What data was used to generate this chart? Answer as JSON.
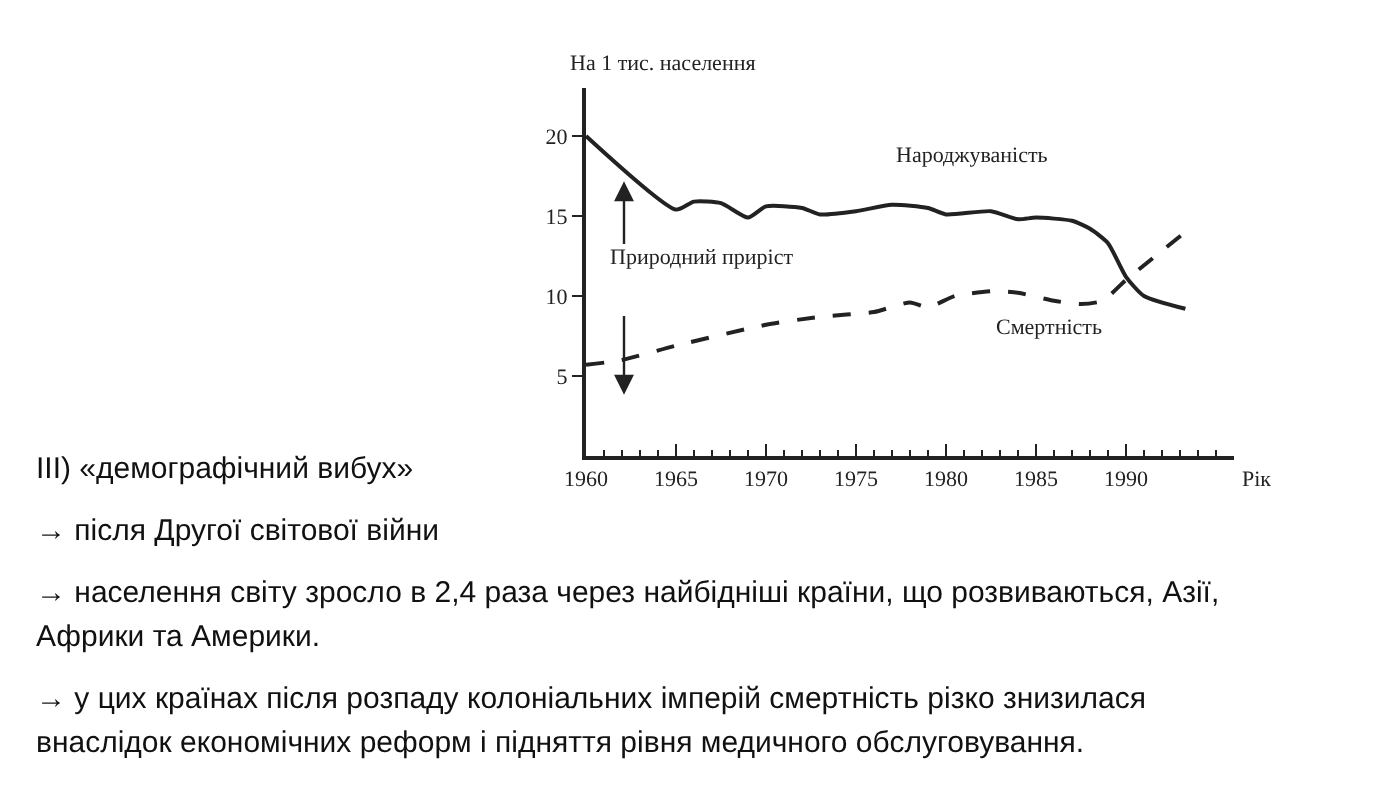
{
  "chart_data": {
    "type": "line",
    "xlabel": "Рік",
    "ylabel": "На 1 тис. населення",
    "xlim": [
      1960,
      1996
    ],
    "xticks": [
      1960,
      1965,
      1970,
      1975,
      1980,
      1985,
      1990
    ],
    "ylim": [
      0,
      23
    ],
    "yticks": [
      5,
      10,
      15,
      20
    ],
    "grid": false,
    "legend": false,
    "marker": "none",
    "series": [
      {
        "name": "Народжуваність",
        "color": "#222222",
        "line_style": "solid",
        "x": [
          1960,
          1965,
          1966,
          1967.5,
          1969,
          1970,
          1972,
          1973,
          1975,
          1977,
          1979,
          1980,
          1982.5,
          1984,
          1985,
          1987,
          1988,
          1989,
          1990,
          1991,
          1993.3
        ],
        "values": [
          20,
          15.4,
          15.9,
          15.8,
          14.9,
          15.6,
          15.5,
          15.1,
          15.3,
          15.7,
          15.5,
          15.1,
          15.3,
          14.8,
          14.9,
          14.7,
          14.2,
          13.3,
          11.2,
          10,
          9.2
        ]
      },
      {
        "name": "Смертність",
        "color": "#222222",
        "line_style": "dashed",
        "x": [
          1960,
          1962,
          1965,
          1970,
          1973,
          1976,
          1978,
          1979,
          1980.5,
          1982.5,
          1984,
          1986,
          1987.5,
          1988.7,
          1990,
          1993.3
        ],
        "values": [
          5.7,
          6,
          6.9,
          8.2,
          8.7,
          9,
          9.6,
          9.3,
          10,
          10.3,
          10.2,
          9.7,
          9.5,
          9.7,
          11,
          14
        ]
      }
    ],
    "annotations": [
      "Природний приріст",
      "III) «демографічний вибух»",
      "→ після Другої світової війни",
      "→ населення світу зросло в 2,4 раза через найбідніші країни, що розвиваються, Азії, Африки та Америки.",
      "→ у цих країнах після розпаду колоніальних імперій смертність різко знизилася внаслідок економічних реформ і підняття рівня медичного обслуговування."
    ]
  }
}
